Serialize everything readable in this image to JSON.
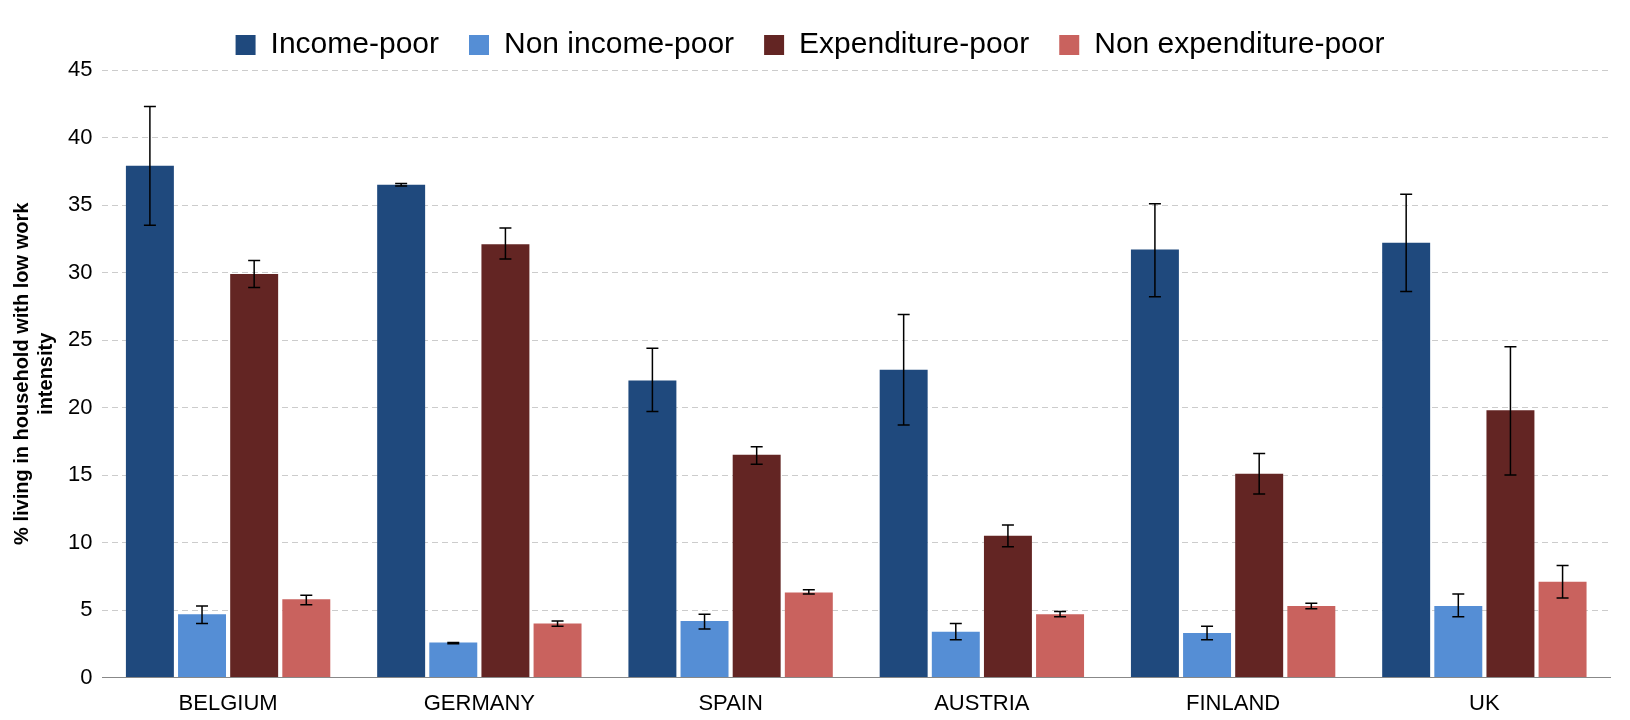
{
  "chart_data": {
    "type": "bar",
    "ylabel": "% living in household with low work intensity",
    "categories": [
      "BELGIUM",
      "GERMANY",
      "SPAIN",
      "AUSTRIA",
      "FINLAND",
      "UK"
    ],
    "series": [
      {
        "name": "Income-poor",
        "color": "#1f497d",
        "values": [
          37.9,
          36.5,
          22.0,
          22.8,
          31.7,
          32.2
        ],
        "errors": [
          [
            33.5,
            42.3
          ],
          [
            36.4,
            36.6
          ],
          [
            19.7,
            24.4
          ],
          [
            18.7,
            26.9
          ],
          [
            28.2,
            35.1
          ],
          [
            28.6,
            35.8
          ]
        ]
      },
      {
        "name": "Non income-poor",
        "color": "#558ed5",
        "values": [
          4.7,
          2.6,
          4.2,
          3.4,
          3.3,
          5.3
        ],
        "errors": [
          [
            4.0,
            5.3
          ],
          [
            2.5,
            2.6
          ],
          [
            3.6,
            4.7
          ],
          [
            2.8,
            4.0
          ],
          [
            2.8,
            3.8
          ],
          [
            4.5,
            6.2
          ]
        ]
      },
      {
        "name": "Expenditure-poor",
        "color": "#632523",
        "values": [
          29.9,
          32.1,
          16.5,
          10.5,
          15.1,
          19.8
        ],
        "errors": [
          [
            28.9,
            30.9
          ],
          [
            31.0,
            33.3
          ],
          [
            15.8,
            17.1
          ],
          [
            9.7,
            11.3
          ],
          [
            13.6,
            16.6
          ],
          [
            15.0,
            24.5
          ]
        ]
      },
      {
        "name": "Non expenditure-poor",
        "color": "#c9625e",
        "values": [
          5.8,
          4.0,
          6.3,
          4.7,
          5.3,
          7.1
        ],
        "errors": [
          [
            5.4,
            6.1
          ],
          [
            3.8,
            4.2
          ],
          [
            6.2,
            6.5
          ],
          [
            4.5,
            4.9
          ],
          [
            5.1,
            5.5
          ],
          [
            5.9,
            8.3
          ]
        ]
      }
    ],
    "ylim": [
      0,
      45
    ],
    "yticks": [
      0,
      5,
      10,
      15,
      20,
      25,
      30,
      35,
      40,
      45
    ],
    "grid": "y",
    "legend": "top"
  }
}
